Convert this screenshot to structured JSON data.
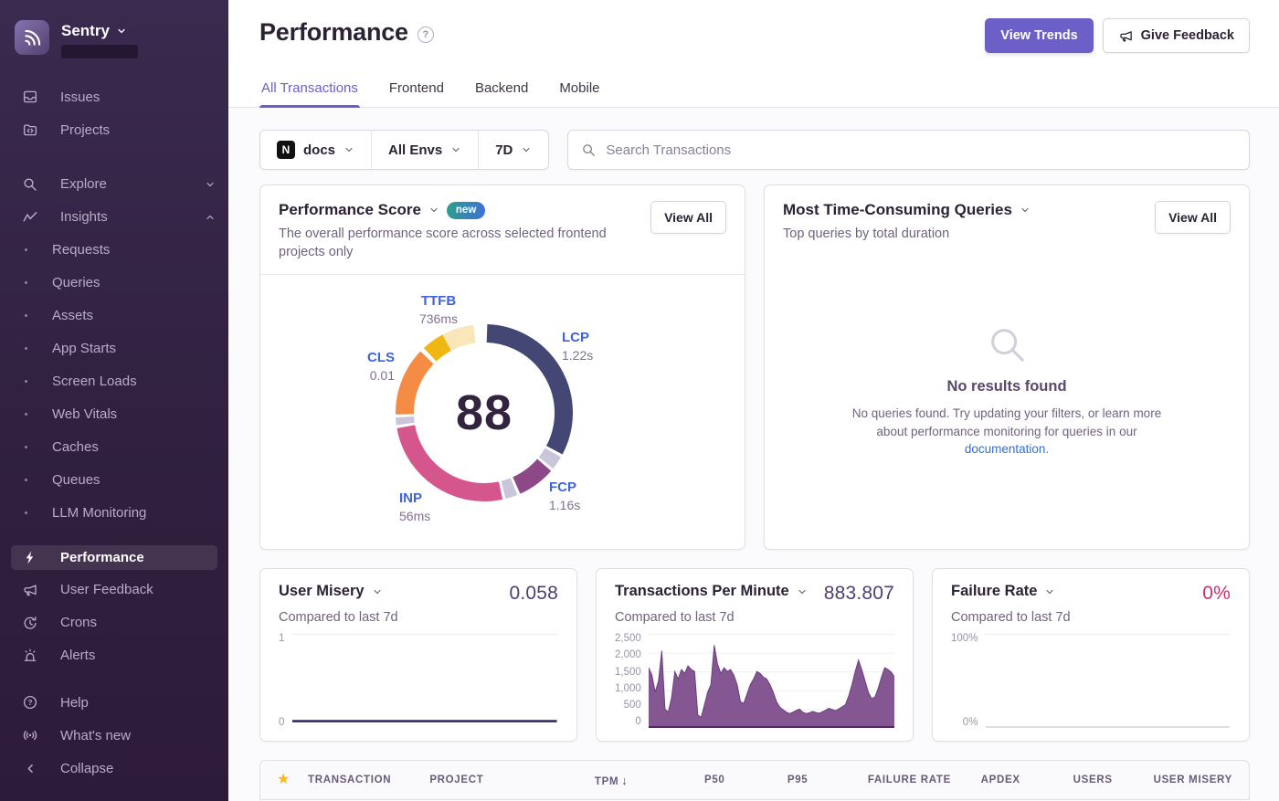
{
  "sidebar": {
    "org_name": "Sentry",
    "primary": [
      {
        "label": "Issues"
      },
      {
        "label": "Projects"
      }
    ],
    "explore": {
      "label": "Explore"
    },
    "insights": {
      "label": "Insights",
      "children": [
        "Requests",
        "Queries",
        "Assets",
        "App Starts",
        "Screen Loads",
        "Web Vitals",
        "Caches",
        "Queues",
        "LLM Monitoring"
      ]
    },
    "secondary": [
      {
        "label": "Performance"
      },
      {
        "label": "User Feedback"
      },
      {
        "label": "Crons"
      },
      {
        "label": "Alerts"
      }
    ],
    "tertiary": [
      {
        "label": "Help"
      },
      {
        "label": "What's new"
      }
    ],
    "collapse_label": "Collapse"
  },
  "header": {
    "title": "Performance",
    "view_trends": "View Trends",
    "give_feedback": "Give Feedback"
  },
  "tabs": [
    {
      "label": "All Transactions",
      "active": true
    },
    {
      "label": "Frontend",
      "active": false
    },
    {
      "label": "Backend",
      "active": false
    },
    {
      "label": "Mobile",
      "active": false
    }
  ],
  "filters": {
    "project": "docs",
    "project_platform_letter": "N",
    "environment": "All Envs",
    "date_range": "7D",
    "search_placeholder": "Search Transactions"
  },
  "performance_score": {
    "title": "Performance Score",
    "badge": "new",
    "subtitle": "The overall performance score across selected frontend projects only",
    "view_all": "View All",
    "score": "88",
    "vitals": {
      "ttfb": {
        "label": "TTFB",
        "value": "736ms"
      },
      "lcp": {
        "label": "LCP",
        "value": "1.22s"
      },
      "fcp": {
        "label": "FCP",
        "value": "1.16s"
      },
      "inp": {
        "label": "INP",
        "value": "56ms"
      },
      "cls": {
        "label": "CLS",
        "value": "0.01"
      }
    }
  },
  "queries_card": {
    "title": "Most Time-Consuming Queries",
    "subtitle": "Top queries by total duration",
    "view_all": "View All",
    "empty_title": "No results found",
    "empty_body": "No queries found. Try updating your filters, or learn more about performance monitoring for queries in our",
    "empty_link": "documentation",
    "empty_period": "."
  },
  "cards": {
    "user_misery": {
      "title": "User Misery",
      "subtitle": "Compared to last 7d",
      "value": "0.058"
    },
    "tpm": {
      "title": "Transactions Per Minute",
      "subtitle": "Compared to last 7d",
      "value": "883.807"
    },
    "failure_rate": {
      "title": "Failure Rate",
      "subtitle": "Compared to last 7d",
      "value": "0%"
    }
  },
  "table": {
    "columns": [
      "TRANSACTION",
      "PROJECT",
      "TPM",
      "P50",
      "P95",
      "FAILURE RATE",
      "APDEX",
      "USERS",
      "USER MISERY"
    ],
    "sorted_column": "TPM",
    "sort_direction": "desc",
    "star_icon": "★"
  },
  "chart_data": [
    {
      "type": "donut",
      "title": "Performance Score",
      "score": 88,
      "legend_position": "around",
      "segments": [
        {
          "label": "LCP",
          "value": "1.22s",
          "color": "#444674",
          "start": 2,
          "end": 118
        },
        {
          "label": "notch",
          "value": "",
          "color": "#C9C5DB",
          "start": 120,
          "end": 129
        },
        {
          "label": "FCP",
          "value": "1.16s",
          "color": "#8C4887",
          "start": 131,
          "end": 156
        },
        {
          "label": "notch",
          "value": "",
          "color": "#C9C5DB",
          "start": 158,
          "end": 166
        },
        {
          "label": "INP",
          "value": "56ms",
          "color": "#D4568C",
          "start": 168,
          "end": 260
        },
        {
          "label": "notch",
          "value": "",
          "color": "#C9C5DB",
          "start": 262,
          "end": 267
        },
        {
          "label": "CLS",
          "value": "0.01",
          "color": "#F58C46",
          "start": 269,
          "end": 314
        },
        {
          "label": "TTFB",
          "value": "736ms",
          "color": "#F0B712",
          "start": 317,
          "end": 332
        },
        {
          "label": "TTFB-rest",
          "value": "",
          "color": "#F9E7B9",
          "start": 332,
          "end": 353
        }
      ]
    },
    {
      "type": "line",
      "title": "User Misery",
      "current_value": 0.058,
      "ylim": [
        0,
        1
      ],
      "yticks": [
        "1",
        "0"
      ],
      "line_color": "#2E2B57",
      "grid": true
    },
    {
      "type": "area",
      "title": "Transactions Per Minute",
      "current_value": 883.807,
      "ylim": [
        0,
        2500
      ],
      "yticks": [
        "2,500",
        "2,000",
        "1,500",
        "1,000",
        "500",
        "0"
      ],
      "fill_color": "#7D4E8D",
      "line_color": "#6B3F7C",
      "baseline_color": "#4A2A59",
      "grid": true,
      "values": [
        1600,
        1400,
        950,
        1250,
        2050,
        500,
        420,
        800,
        1500,
        1300,
        1550,
        1450,
        1650,
        1550,
        1500,
        350,
        280,
        600,
        950,
        1150,
        2200,
        1700,
        1450,
        1600,
        1500,
        1550,
        1400,
        1150,
        700,
        650,
        900,
        1150,
        1300,
        1500,
        1450,
        1350,
        1300,
        1150,
        950,
        700,
        550,
        480,
        420,
        380,
        420,
        460,
        500,
        420,
        380,
        400,
        440,
        410,
        390,
        430,
        470,
        520,
        490,
        460,
        510,
        560,
        620,
        850,
        1150,
        1500,
        1800,
        1550,
        1250,
        950,
        780,
        820,
        1050,
        1350,
        1600,
        1550,
        1480,
        1350
      ]
    },
    {
      "type": "line",
      "title": "Failure Rate",
      "current_value": 0,
      "ylim": [
        0,
        100
      ],
      "yticks": [
        "100%",
        "0%"
      ],
      "line_color": "#D6D2DB",
      "grid": true
    }
  ]
}
